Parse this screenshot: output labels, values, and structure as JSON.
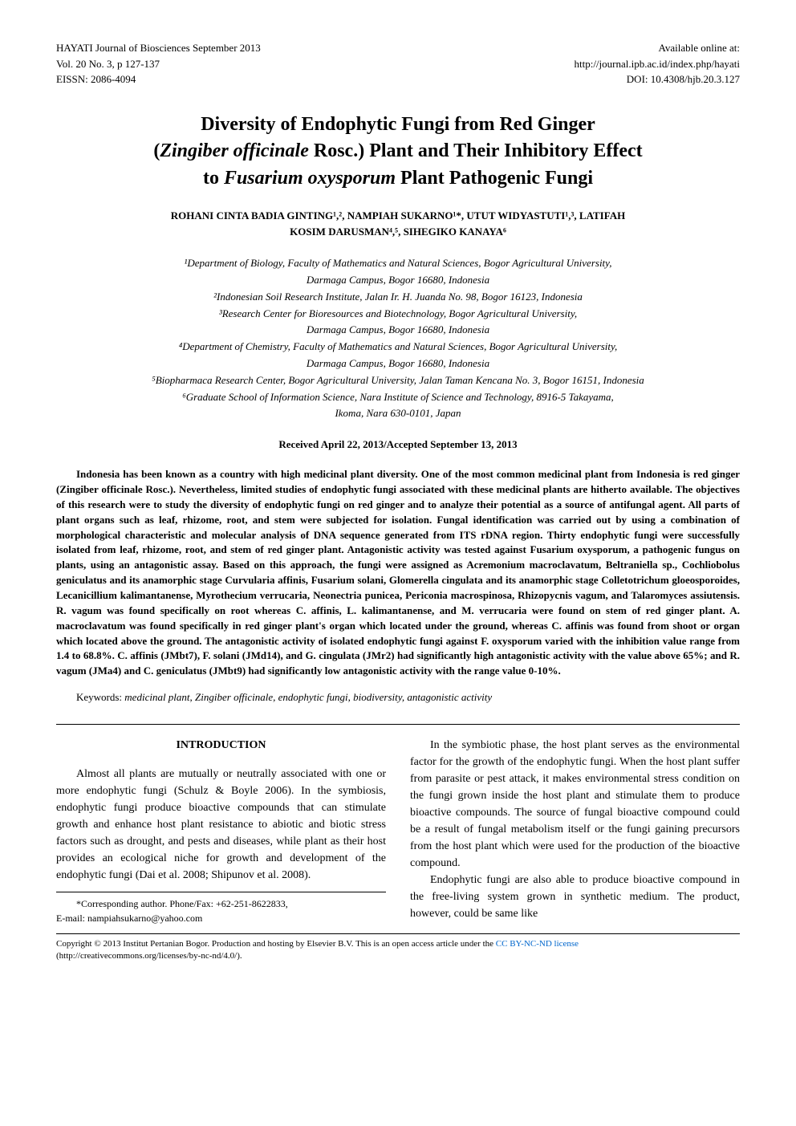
{
  "header": {
    "journal": "HAYATI Journal of Biosciences September 2013",
    "volume": "Vol. 20 No. 3, p 127-137",
    "eissn": "EISSN: 2086-4094",
    "available": "Available online at:",
    "url": "http://journal.ipb.ac.id/index.php/hayati",
    "doi": "DOI: 10.4308/hjb.20.3.127"
  },
  "title": {
    "line1": "Diversity of Endophytic Fungi from Red Ginger",
    "line2_pre": "(",
    "line2_italic": "Zingiber officinale",
    "line2_post": " Rosc.) Plant and Their Inhibitory Effect",
    "line3_pre": "to ",
    "line3_italic": "Fusarium oxysporum",
    "line3_post": " Plant Pathogenic Fungi"
  },
  "authors": {
    "line1": "ROHANI CINTA BADIA GINTING¹,², NAMPIAH SUKARNO¹*, UTUT WIDYASTUTI¹,³, LATIFAH",
    "line2": "KOSIM DARUSMAN⁴,⁵, SIHEGIKO KANAYA⁶"
  },
  "affiliations": {
    "a1": "¹Department of Biology, Faculty of Mathematics and Natural Sciences, Bogor Agricultural University,",
    "a1b": "Darmaga Campus, Bogor 16680, Indonesia",
    "a2": "²Indonesian Soil Research Institute, Jalan Ir. H. Juanda No. 98, Bogor 16123, Indonesia",
    "a3": "³Research Center for Bioresources and Biotechnology, Bogor Agricultural University,",
    "a3b": "Darmaga Campus, Bogor 16680, Indonesia",
    "a4": "⁴Department of Chemistry, Faculty of Mathematics and Natural Sciences, Bogor Agricultural University,",
    "a4b": "Darmaga Campus, Bogor 16680, Indonesia",
    "a5": "⁵Biopharmaca Research Center, Bogor Agricultural University, Jalan Taman Kencana No. 3, Bogor 16151, Indonesia",
    "a6": "⁶Graduate School of Information Science, Nara Institute of Science and Technology, 8916-5 Takayama,",
    "a6b": "Ikoma, Nara 630-0101, Japan"
  },
  "received": "Received April 22, 2013/Accepted September 13, 2013",
  "abstract": "Indonesia has been known as a country with high medicinal plant diversity. One of the most common medicinal plant from Indonesia is red ginger (Zingiber officinale Rosc.). Nevertheless, limited studies of endophytic fungi associated with these medicinal plants are hitherto available. The objectives of this research were to study the diversity of endophytic fungi on red ginger and to analyze their potential as a source of antifungal agent. All parts of plant organs such as leaf, rhizome, root, and stem were subjected for isolation. Fungal identification was carried out by using a combination of morphological characteristic and molecular analysis of DNA sequence generated from ITS rDNA region. Thirty endophytic fungi were successfully isolated from leaf, rhizome, root, and stem of red ginger plant. Antagonistic activity was tested against Fusarium oxysporum, a pathogenic fungus on plants, using an antagonistic assay. Based on this approach, the fungi were assigned as Acremonium macroclavatum, Beltraniella sp., Cochliobolus geniculatus and its anamorphic stage Curvularia affinis, Fusarium solani, Glomerella cingulata and its anamorphic stage Colletotrichum gloeosporoides, Lecanicillium kalimantanense, Myrothecium verrucaria, Neonectria punicea, Periconia macrospinosa, Rhizopycnis vagum, and Talaromyces assiutensis. R. vagum was found specifically on root whereas C. affinis, L. kalimantanense, and M. verrucaria were found on stem of red ginger plant. A. macroclavatum was found specifically in red ginger plant's organ which located under the ground, whereas C. affinis was found from shoot or organ which located above the ground. The antagonistic activity of isolated endophytic fungi against F. oxysporum varied with the inhibition value range from 1.4 to 68.8%. C. affinis (JMbt7), F. solani (JMd14), and G. cingulata (JMr2) had significantly high antagonistic activity with the value above 65%; and R. vagum (JMa4) and C. geniculatus (JMbt9) had significantly low antagonistic activity with the range value 0-10%.",
  "keywords": {
    "label": "Keywords: ",
    "text": "medicinal plant, Zingiber officinale, endophytic fungi, biodiversity, antagonistic activity"
  },
  "intro_heading": "INTRODUCTION",
  "body": {
    "col1_p1": "Almost all plants are mutually or neutrally associated with one or more endophytic fungi (Schulz & Boyle 2006). In the symbiosis, endophytic fungi produce bioactive compounds that can stimulate growth and enhance host plant resistance to abiotic and biotic stress factors such as drought, and pests and diseases, while plant as their host provides an ecological niche for growth and development of the endophytic fungi (Dai et al. 2008; Shipunov et al. 2008).",
    "col2_p1": "In the symbiotic phase, the host plant serves as the environmental factor for the growth of the endophytic fungi. When the host plant suffer from parasite or pest attack, it makes environmental stress condition on the fungi grown inside the host plant and stimulate them to produce bioactive compounds. The source of fungal bioactive compound could be a result of fungal metabolism itself or the fungi gaining precursors from the host plant which were used for the production of the bioactive compound.",
    "col2_p2": "Endophytic fungi are also able to produce bioactive compound in the free-living system grown in synthetic medium. The product, however, could be same like"
  },
  "corresponding": {
    "line1": "*Corresponding author. Phone/Fax: +62-251-8622833,",
    "line2": "E-mail: nampiahsukarno@yahoo.com"
  },
  "copyright": {
    "text1": "Copyright © 2013 Institut Pertanian Bogor. Production and hosting by Elsevier B.V. This is an open access article under the ",
    "link": "CC BY-NC-ND license",
    "text2": "(http://creativecommons.org/licenses/by-nc-nd/4.0/)."
  }
}
